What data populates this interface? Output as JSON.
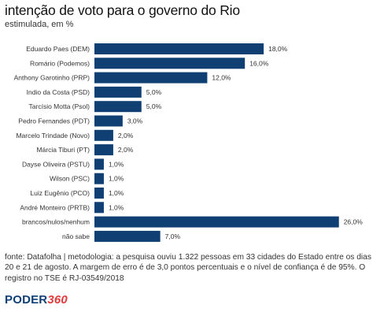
{
  "title": "intenção de voto para o governo do Rio",
  "subtitle": "estimulada, em %",
  "chart_data": {
    "type": "bar",
    "orientation": "horizontal",
    "categories": [
      "Eduardo Paes (DEM)",
      "Romário (Podemos)",
      "Anthony Garotinho (PRP)",
      "Indio da Costa (PSD)",
      "Tarcísio Motta (Psol)",
      "Pedro Fernandes (PDT)",
      "Marcelo Trindade (Novo)",
      "Márcia Tiburi (PT)",
      "Dayse Oliveira (PSTU)",
      "Wilson (PSC)",
      "Luiz Eugênio (PCO)",
      "André Monteiro (PRTB)",
      "brancos/nulos/nenhum",
      "não sabe"
    ],
    "values": [
      18,
      16,
      12,
      5,
      5,
      3,
      2,
      2,
      1,
      1,
      1,
      1,
      26,
      7
    ],
    "value_labels": [
      "18,0%",
      "16,0%",
      "12,0%",
      "5,0%",
      "5,0%",
      "3,0%",
      "2,0%",
      "2,0%",
      "1,0%",
      "1,0%",
      "1,0%",
      "1,0%",
      "26,0%",
      "7,0%"
    ],
    "xlim": [
      0,
      26
    ],
    "grid": false,
    "bar_color": "#0f3f73"
  },
  "footnote": "fonte: Datafolha | metodologia: a pesquisa ouviu 1.322 pessoas em 33 cidades do Estado entre os dias 20 e 21 de agosto. A margem de erro é de 3,0 pontos percentuais e o nível de confiança é de 95%. O registro no TSE é RJ-03549/2018",
  "logo": {
    "brand": "PODER",
    "number": "360",
    "brand_color": "#0f3f73",
    "number_color": "#e23a3a"
  }
}
